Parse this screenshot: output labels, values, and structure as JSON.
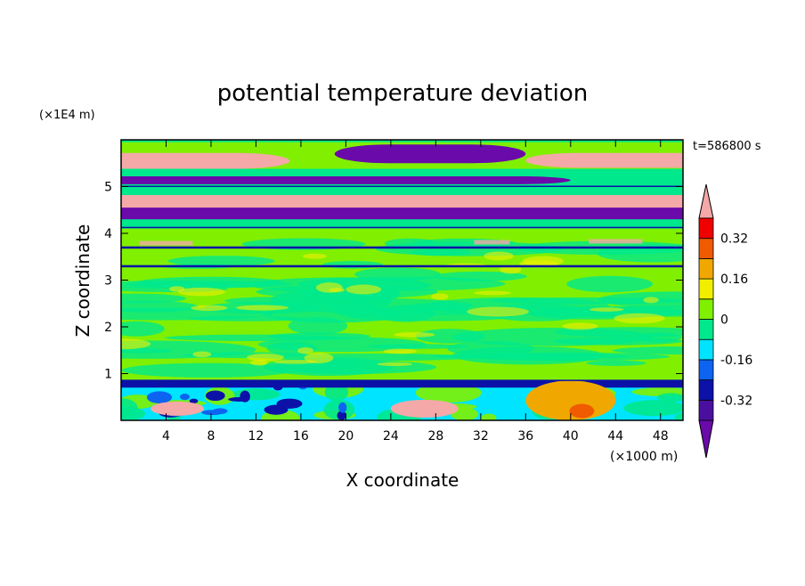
{
  "chart_data": {
    "type": "heatmap",
    "title": "potential temperature deviation",
    "xlabel": "X coordinate",
    "ylabel": "Z coordinate",
    "x_unit": "(×1000 m)",
    "y_unit": "(×1E4 m)",
    "time_label": "t=586800 s",
    "xlim": [
      0,
      50
    ],
    "ylim": [
      0,
      6
    ],
    "x_ticks": [
      4,
      8,
      12,
      16,
      20,
      24,
      28,
      32,
      36,
      40,
      44,
      48
    ],
    "y_ticks": [
      1,
      2,
      3,
      4,
      5
    ],
    "colorbar": {
      "levels": [
        -0.4,
        -0.32,
        -0.24,
        -0.16,
        -0.08,
        0,
        0.08,
        0.16,
        0.24,
        0.32,
        0.4
      ],
      "labeled_levels": [
        -0.32,
        -0.16,
        0,
        0.16,
        0.32
      ],
      "colors": [
        "#4b0fa0",
        "#0c12a8",
        "#0c64f0",
        "#00e4ff",
        "#00e88c",
        "#80f000",
        "#f2ee00",
        "#f0a800",
        "#f05a00",
        "#f00000"
      ],
      "below_color": "#6a0aaa",
      "above_color": "#f4a8a8",
      "extend": "both"
    },
    "bands": [
      {
        "z": [
          5.38,
          5.72
        ],
        "x": [
          0,
          15
        ],
        "level": "above"
      },
      {
        "z": [
          5.4,
          5.72
        ],
        "x": [
          36,
          50
        ],
        "level": "above"
      },
      {
        "z": [
          5.05,
          5.22
        ],
        "x": [
          0,
          40
        ],
        "level": "below"
      },
      {
        "z": [
          5.5,
          5.9
        ],
        "x": [
          19,
          36
        ],
        "level": "below"
      },
      {
        "z": [
          4.45,
          4.82
        ],
        "x": [
          0,
          50
        ],
        "level": "above"
      },
      {
        "z": [
          4.3,
          4.55
        ],
        "x": [
          0,
          50
        ],
        "level": "below"
      },
      {
        "z": [
          3.7,
          3.72
        ],
        "x": [
          0,
          50
        ],
        "level": "-0.32"
      },
      {
        "z": [
          3.3,
          3.32
        ],
        "x": [
          0,
          50
        ],
        "level": "-0.32"
      },
      {
        "z": [
          0.7,
          0.85
        ],
        "x": [
          0,
          50
        ],
        "level": "-0.32"
      },
      {
        "z": [
          0.0,
          0.85
        ],
        "x": [
          36,
          44
        ],
        "level": "0.16"
      }
    ]
  }
}
